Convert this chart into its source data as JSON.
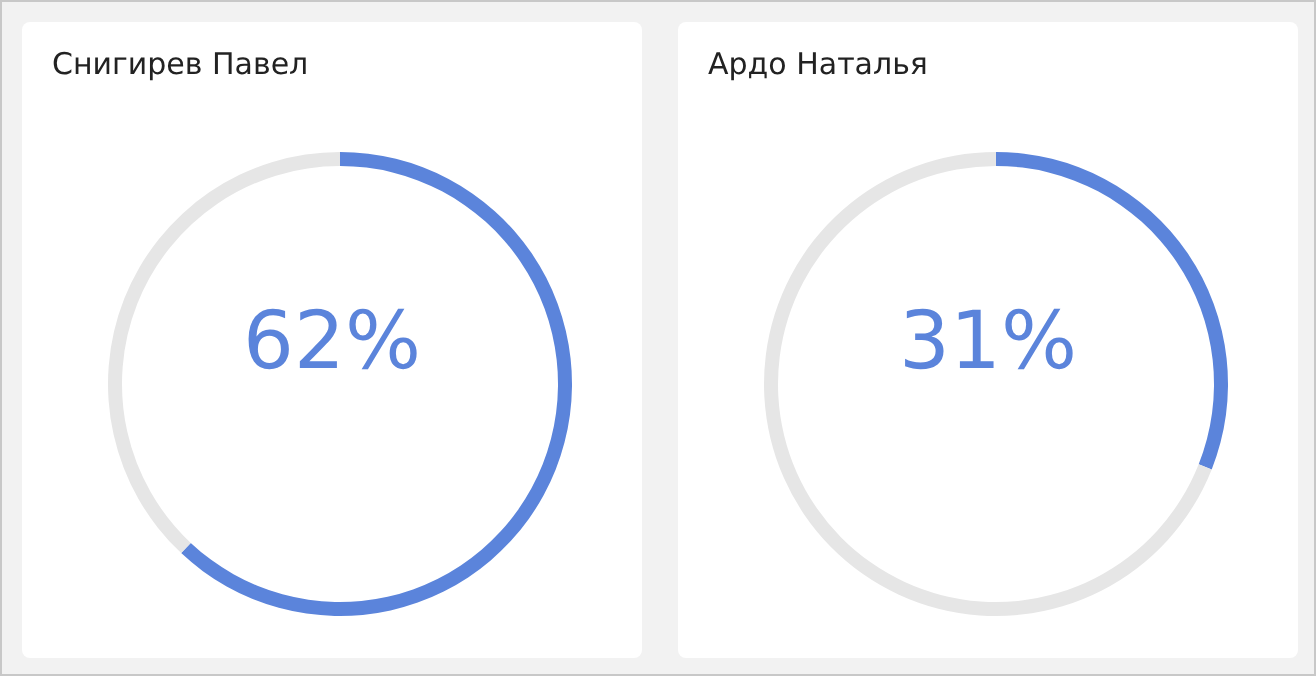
{
  "chart_data": [
    {
      "type": "donut",
      "title": "Снигирев Павел",
      "categories": [
        null,
        null
      ],
      "values": [
        62,
        38
      ],
      "colors": [
        "#5b84db",
        "#e6e6e6"
      ],
      "value_labels": [
        "62%",
        null
      ]
    },
    {
      "type": "donut",
      "title": "Ардо Наталья",
      "categories": [
        null,
        null
      ],
      "values": [
        31,
        69
      ],
      "colors": [
        "#5b84db",
        "#e6e6e6"
      ],
      "value_labels": [
        "31%",
        null
      ]
    }
  ]
}
